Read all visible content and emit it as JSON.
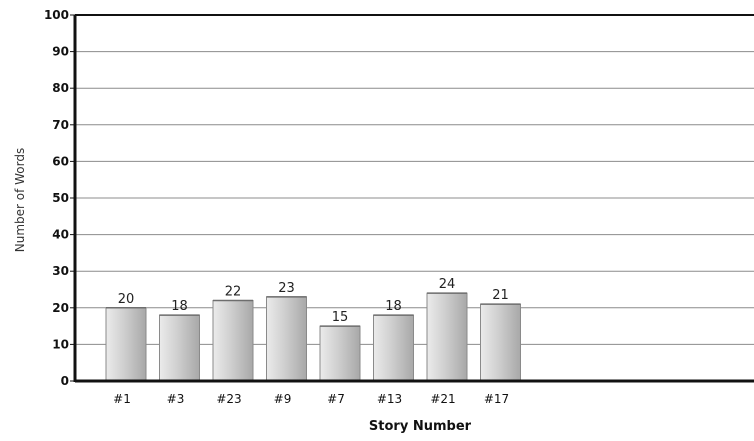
{
  "chart_data": {
    "type": "bar",
    "title": "",
    "xlabel": "Story Number",
    "ylabel": "Number of Words",
    "categories": [
      "#1",
      "#3",
      "#23",
      "#9",
      "#7",
      "#13",
      "#21",
      "#17"
    ],
    "values": [
      20,
      18,
      22,
      23,
      15,
      18,
      24,
      21
    ],
    "ylim": [
      0,
      100
    ],
    "yticks": [
      0,
      10,
      20,
      30,
      40,
      50,
      60,
      70,
      80,
      90,
      100
    ],
    "grid": true,
    "legend": "none",
    "colors": {
      "bar_light": "#ebebeb",
      "bar_mid": "#cfcfcf",
      "bar_dark": "#a8a8a8",
      "bar_edge": "#8a8a8a",
      "grid": "#8c8c8c",
      "axis": "#111111",
      "background": "#ffffff"
    }
  }
}
